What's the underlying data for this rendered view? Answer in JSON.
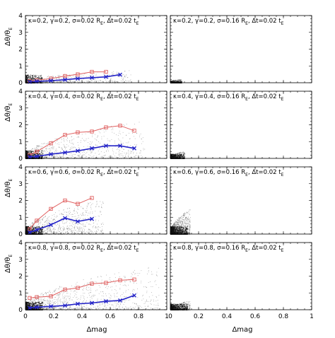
{
  "figure": {
    "xlabel": "Δmag",
    "ylabel": "Δθ/θ",
    "ylabel_sub": "E"
  },
  "chart_data": [
    {
      "type": "scatter",
      "label": "κ=0.2, γ=0.2, σ=0.02 R",
      "label_sub": "E",
      "label_tail": ", Δt=0.02 t",
      "label_tail_sub": "E",
      "xlim": [
        0,
        1
      ],
      "ylim": [
        0,
        4
      ],
      "x_ticks": [
        0,
        0.2,
        0.4,
        0.6,
        0.8,
        1
      ],
      "y_ticks": [
        0,
        1,
        2,
        3,
        4
      ],
      "cloud": {
        "xmax": 0.75,
        "ymax": 0.7,
        "density": 1.0
      },
      "series": [
        {
          "color": "#e06060",
          "marker": "square",
          "x": [
            0.03,
            0.08,
            0.18,
            0.28,
            0.37,
            0.47,
            0.57
          ],
          "y": [
            0.1,
            0.15,
            0.25,
            0.4,
            0.5,
            0.65,
            0.65
          ]
        },
        {
          "color": "#2424c8",
          "marker": "x",
          "x": [
            0.03,
            0.08,
            0.18,
            0.28,
            0.37,
            0.47,
            0.57,
            0.67
          ],
          "y": [
            0.05,
            0.08,
            0.12,
            0.18,
            0.25,
            0.3,
            0.35,
            0.48
          ]
        }
      ]
    },
    {
      "type": "scatter",
      "label": "κ=0.2, γ=0.2, σ=0.16 R",
      "label_sub": "E",
      "label_tail": ", Δt=0.02 t",
      "label_tail_sub": "E",
      "xlim": [
        0,
        1
      ],
      "ylim": [
        0,
        4
      ],
      "x_ticks": [
        0,
        0.2,
        0.4,
        0.6,
        0.8,
        1
      ],
      "y_ticks": [
        0,
        1,
        2,
        3,
        4
      ],
      "cloud": {
        "xmax": 0.08,
        "ymax": 0.12,
        "density": 1.0
      },
      "series": []
    },
    {
      "type": "scatter",
      "label": "κ=0.4, γ=0.4, σ=0.02 R",
      "label_sub": "E",
      "label_tail": ", Δt=0.02 t",
      "label_tail_sub": "E",
      "xlim": [
        0,
        1
      ],
      "ylim": [
        0,
        4
      ],
      "x_ticks": [
        0,
        0.2,
        0.4,
        0.6,
        0.8,
        1
      ],
      "y_ticks": [
        0,
        1,
        2,
        3,
        4
      ],
      "cloud": {
        "xmax": 0.85,
        "ymax": 2.2,
        "density": 1.6
      },
      "series": [
        {
          "color": "#e06060",
          "marker": "square",
          "x": [
            0.03,
            0.08,
            0.18,
            0.28,
            0.37,
            0.47,
            0.57,
            0.67,
            0.77
          ],
          "y": [
            0.2,
            0.4,
            0.9,
            1.4,
            1.55,
            1.6,
            1.85,
            1.95,
            1.65
          ]
        },
        {
          "color": "#2424c8",
          "marker": "x",
          "x": [
            0.03,
            0.08,
            0.18,
            0.28,
            0.37,
            0.47,
            0.57,
            0.67,
            0.77
          ],
          "y": [
            0.08,
            0.12,
            0.25,
            0.35,
            0.45,
            0.6,
            0.75,
            0.75,
            0.6
          ]
        }
      ]
    },
    {
      "type": "scatter",
      "label": "κ=0.4, γ=0.4, σ=0.16 R",
      "label_sub": "E",
      "label_tail": ", Δt=0.02 t",
      "label_tail_sub": "E",
      "xlim": [
        0,
        1
      ],
      "ylim": [
        0,
        4
      ],
      "x_ticks": [
        0,
        0.2,
        0.4,
        0.6,
        0.8,
        1
      ],
      "y_ticks": [
        0,
        1,
        2,
        3,
        4
      ],
      "cloud": {
        "xmax": 0.1,
        "ymax": 0.35,
        "density": 1.3
      },
      "series": []
    },
    {
      "type": "scatter",
      "label": "κ=0.6, γ=0.6, σ=0.02 R",
      "label_sub": "E",
      "label_tail": ", Δt=0.02 t",
      "label_tail_sub": "E",
      "xlim": [
        0,
        1
      ],
      "ylim": [
        0,
        4
      ],
      "x_ticks": [
        0,
        0.2,
        0.4,
        0.6,
        0.8,
        1
      ],
      "y_ticks": [
        0,
        1,
        2,
        3,
        4
      ],
      "cloud": {
        "xmax": 0.55,
        "ymax": 2.0,
        "density": 1.8
      },
      "series": [
        {
          "color": "#e06060",
          "marker": "square",
          "x": [
            0.03,
            0.08,
            0.18,
            0.28,
            0.37,
            0.47
          ],
          "y": [
            0.3,
            0.8,
            1.5,
            2.0,
            1.8,
            2.15
          ]
        },
        {
          "color": "#2424c8",
          "marker": "x",
          "x": [
            0.03,
            0.08,
            0.18,
            0.28,
            0.37,
            0.47
          ],
          "y": [
            0.1,
            0.25,
            0.55,
            0.95,
            0.75,
            0.9
          ]
        }
      ]
    },
    {
      "type": "scatter",
      "label": "κ=0.6, γ=0.6, σ=0.16 R",
      "label_sub": "E",
      "label_tail": ", Δt=0.02 t",
      "label_tail_sub": "E",
      "xlim": [
        0,
        1
      ],
      "ylim": [
        0,
        4
      ],
      "x_ticks": [
        0,
        0.2,
        0.4,
        0.6,
        0.8,
        1
      ],
      "y_ticks": [
        0,
        1,
        2,
        3,
        4
      ],
      "cloud": {
        "xmax": 0.14,
        "ymax": 1.4,
        "density": 2.2
      },
      "series": []
    },
    {
      "type": "scatter",
      "label": "κ=0.8, γ=0.8, σ=0.02 R",
      "label_sub": "E",
      "label_tail": ", Δt=0.02 t",
      "label_tail_sub": "E",
      "xlim": [
        0,
        1
      ],
      "ylim": [
        0,
        4
      ],
      "x_ticks": [
        0,
        0.2,
        0.4,
        0.6,
        0.8,
        1
      ],
      "y_ticks": [
        0,
        1,
        2,
        3,
        4
      ],
      "cloud": {
        "xmax": 0.95,
        "ymax": 2.6,
        "density": 2.0
      },
      "series": [
        {
          "color": "#e06060",
          "marker": "square",
          "x": [
            0.03,
            0.08,
            0.18,
            0.28,
            0.37,
            0.47,
            0.57,
            0.67,
            0.77
          ],
          "y": [
            0.7,
            0.75,
            0.8,
            1.2,
            1.3,
            1.55,
            1.6,
            1.75,
            1.8
          ]
        },
        {
          "color": "#2424c8",
          "marker": "x",
          "x": [
            0.03,
            0.08,
            0.18,
            0.28,
            0.37,
            0.47,
            0.57,
            0.67,
            0.77
          ],
          "y": [
            0.1,
            0.15,
            0.2,
            0.25,
            0.35,
            0.4,
            0.5,
            0.55,
            0.85
          ]
        }
      ]
    },
    {
      "type": "scatter",
      "label": "κ=0.8, γ=0.8, σ=0.16 R",
      "label_sub": "E",
      "label_tail": ", Δt=0.02 t",
      "label_tail_sub": "E",
      "xlim": [
        0,
        1
      ],
      "ylim": [
        0,
        4
      ],
      "x_ticks": [
        0,
        0.2,
        0.4,
        0.6,
        0.8,
        1
      ],
      "y_ticks": [
        0,
        1,
        2,
        3,
        4
      ],
      "cloud": {
        "xmax": 0.14,
        "ymax": 0.45,
        "density": 1.5
      },
      "series": []
    }
  ]
}
